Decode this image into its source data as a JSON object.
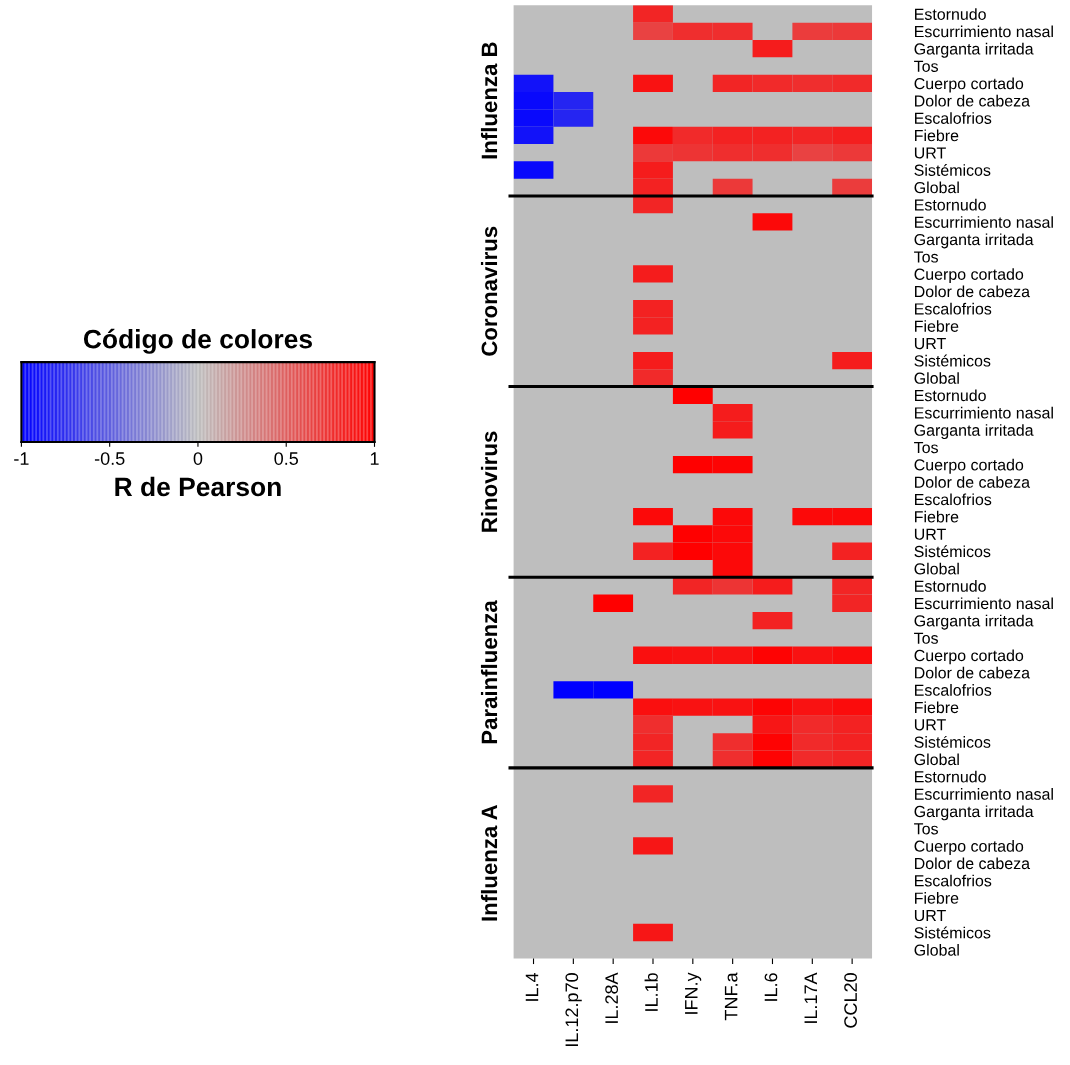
{
  "chart_data": {
    "type": "heatmap",
    "legend_title": "Código de colores",
    "clabel": "R de Pearson",
    "clim": [
      -1,
      1
    ],
    "cticks": [
      -1,
      -0.5,
      0,
      0.5,
      1
    ],
    "annotations": [
      "Influenza B",
      "Coronavirus",
      "Rinovirus",
      "Parainfluenza",
      "Influenza A"
    ],
    "categories": [
      "IL.4",
      "IL.12.p70",
      "IL.28A",
      "IL.1b",
      "IFN.y",
      "TNF.a",
      "IL.6",
      "IL.17A",
      "CCL20"
    ],
    "y_categories": [
      "Estornudo",
      "Escurrimiento nasal",
      "Garganta irritada",
      "Tos",
      "Cuerpo cortado",
      "Dolor de cabeza",
      "Escalofrios",
      "Fiebre",
      "URT",
      "Sistémicos",
      "Global",
      "Estornudo",
      "Escurrimiento nasal",
      "Garganta irritada",
      "Tos",
      "Cuerpo cortado",
      "Dolor de cabeza",
      "Escalofrios",
      "Fiebre",
      "URT",
      "Sistémicos",
      "Global",
      "Estornudo",
      "Escurrimiento nasal",
      "Garganta irritada",
      "Tos",
      "Cuerpo cortado",
      "Dolor de cabeza",
      "Escalofrios",
      "Fiebre",
      "URT",
      "Sistémicos",
      "Global",
      "Estornudo",
      "Escurrimiento nasal",
      "Garganta irritada",
      "Tos",
      "Cuerpo cortado",
      "Dolor de cabeza",
      "Escalofrios",
      "Fiebre",
      "URT",
      "Sistémicos",
      "Global",
      "Estornudo",
      "Escurrimiento nasal",
      "Garganta irritada",
      "Tos",
      "Cuerpo cortado",
      "Dolor de cabeza",
      "Escalofrios",
      "Fiebre",
      "URT",
      "Sistémicos",
      "Global"
    ],
    "cells": [
      [
        null,
        null,
        null,
        0.8,
        null,
        null,
        null,
        null,
        null
      ],
      [
        null,
        null,
        null,
        0.65,
        0.75,
        0.75,
        null,
        0.68,
        0.7
      ],
      [
        null,
        null,
        null,
        null,
        null,
        null,
        0.85,
        null,
        null
      ],
      [
        null,
        null,
        null,
        null,
        null,
        null,
        null,
        null,
        null
      ],
      [
        -0.9,
        null,
        null,
        0.9,
        null,
        0.8,
        0.78,
        0.75,
        0.78
      ],
      [
        -0.95,
        -0.8,
        null,
        null,
        null,
        null,
        null,
        null,
        null
      ],
      [
        -0.95,
        -0.8,
        null,
        null,
        null,
        null,
        null,
        null,
        null
      ],
      [
        -0.9,
        null,
        null,
        0.95,
        0.78,
        0.82,
        0.82,
        0.8,
        0.83
      ],
      [
        null,
        null,
        null,
        0.7,
        0.72,
        0.75,
        0.75,
        0.65,
        0.7
      ],
      [
        -0.95,
        null,
        null,
        0.85,
        null,
        null,
        null,
        null,
        null
      ],
      [
        null,
        null,
        null,
        0.82,
        null,
        0.7,
        null,
        null,
        0.68
      ],
      [
        null,
        null,
        null,
        0.8,
        null,
        null,
        null,
        null,
        null
      ],
      [
        null,
        null,
        null,
        null,
        null,
        null,
        0.95,
        null,
        null
      ],
      [
        null,
        null,
        null,
        null,
        null,
        null,
        null,
        null,
        null
      ],
      [
        null,
        null,
        null,
        null,
        null,
        null,
        null,
        null,
        null
      ],
      [
        null,
        null,
        null,
        0.85,
        null,
        null,
        null,
        null,
        null
      ],
      [
        null,
        null,
        null,
        null,
        null,
        null,
        null,
        null,
        null
      ],
      [
        null,
        null,
        null,
        0.82,
        null,
        null,
        null,
        null,
        null
      ],
      [
        null,
        null,
        null,
        0.82,
        null,
        null,
        null,
        null,
        null
      ],
      [
        null,
        null,
        null,
        null,
        null,
        null,
        null,
        null,
        null
      ],
      [
        null,
        null,
        null,
        0.85,
        null,
        null,
        null,
        null,
        0.85
      ],
      [
        null,
        null,
        null,
        0.78,
        null,
        null,
        null,
        null,
        null
      ],
      [
        null,
        null,
        null,
        null,
        1.0,
        null,
        null,
        null,
        null
      ],
      [
        null,
        null,
        null,
        null,
        null,
        0.85,
        null,
        null,
        null
      ],
      [
        null,
        null,
        null,
        null,
        null,
        0.85,
        null,
        null,
        null
      ],
      [
        null,
        null,
        null,
        null,
        null,
        null,
        null,
        null,
        null
      ],
      [
        null,
        null,
        null,
        null,
        1.0,
        0.97,
        null,
        null,
        null
      ],
      [
        null,
        null,
        null,
        null,
        null,
        null,
        null,
        null,
        null
      ],
      [
        null,
        null,
        null,
        null,
        null,
        null,
        null,
        null,
        null
      ],
      [
        null,
        null,
        null,
        0.95,
        null,
        0.95,
        null,
        0.95,
        0.95
      ],
      [
        null,
        null,
        null,
        null,
        1.0,
        0.95,
        null,
        null,
        null
      ],
      [
        null,
        null,
        null,
        0.82,
        1.0,
        0.95,
        null,
        null,
        0.82
      ],
      [
        null,
        null,
        null,
        null,
        null,
        0.95,
        null,
        null,
        null
      ],
      [
        null,
        null,
        null,
        null,
        0.8,
        0.72,
        0.85,
        null,
        0.8
      ],
      [
        null,
        null,
        1.0,
        null,
        null,
        null,
        null,
        null,
        0.8
      ],
      [
        null,
        null,
        null,
        null,
        null,
        null,
        0.82,
        null,
        null
      ],
      [
        null,
        null,
        null,
        null,
        null,
        null,
        null,
        null,
        null
      ],
      [
        null,
        null,
        null,
        0.92,
        0.9,
        0.9,
        0.98,
        0.9,
        0.93
      ],
      [
        null,
        null,
        null,
        null,
        null,
        null,
        null,
        null,
        null
      ],
      [
        null,
        -1.0,
        -1.0,
        null,
        null,
        null,
        null,
        null,
        null
      ],
      [
        null,
        null,
        null,
        0.92,
        0.9,
        0.9,
        0.97,
        0.9,
        0.93
      ],
      [
        null,
        null,
        null,
        0.75,
        null,
        null,
        0.88,
        0.78,
        0.82
      ],
      [
        null,
        null,
        null,
        0.8,
        null,
        0.75,
        0.98,
        0.78,
        0.82
      ],
      [
        null,
        null,
        null,
        0.8,
        null,
        0.75,
        0.98,
        0.78,
        0.8
      ],
      [
        null,
        null,
        null,
        null,
        null,
        null,
        null,
        null,
        null
      ],
      [
        null,
        null,
        null,
        0.8,
        null,
        null,
        null,
        null,
        null
      ],
      [
        null,
        null,
        null,
        null,
        null,
        null,
        null,
        null,
        null
      ],
      [
        null,
        null,
        null,
        null,
        null,
        null,
        null,
        null,
        null
      ],
      [
        null,
        null,
        null,
        0.88,
        null,
        null,
        null,
        null,
        null
      ],
      [
        null,
        null,
        null,
        null,
        null,
        null,
        null,
        null,
        null
      ],
      [
        null,
        null,
        null,
        null,
        null,
        null,
        null,
        null,
        null
      ],
      [
        null,
        null,
        null,
        null,
        null,
        null,
        null,
        null,
        null
      ],
      [
        null,
        null,
        null,
        null,
        null,
        null,
        null,
        null,
        null
      ],
      [
        null,
        null,
        null,
        0.88,
        null,
        null,
        null,
        null,
        null
      ],
      [
        null,
        null,
        null,
        null,
        null,
        null,
        null,
        null,
        null
      ]
    ]
  }
}
